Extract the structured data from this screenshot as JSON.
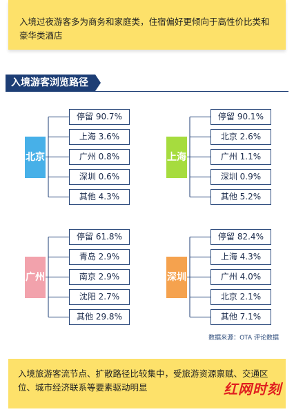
{
  "header": {
    "note": "入境过夜游客多为商务和家庭类，住宿偏好更倾向于高性价比类和豪华类酒店"
  },
  "section": {
    "title": "入境游客浏览路径"
  },
  "colors": {
    "beijing": "#47b0e8",
    "shanghai": "#a6dc3e",
    "guangzhou": "#f2a2ac",
    "shenzhen": "#f5a24e",
    "navy": "#1d3e75",
    "yellow": "#fde16a"
  },
  "groups": [
    {
      "city": "北京",
      "color_key": "beijing",
      "items": [
        "停留 90.7%",
        "上海 3.6%",
        "广州 0.8%",
        "深圳 0.6%",
        "其他 4.3%"
      ]
    },
    {
      "city": "上海",
      "color_key": "shanghai",
      "items": [
        "停留 90.1%",
        "北京 2.6%",
        "广州 1.1%",
        "深圳 0.9%",
        "其他 5.2%"
      ]
    },
    {
      "city": "广州",
      "color_key": "guangzhou",
      "items": [
        "停留 61.8%",
        "青岛 2.9%",
        "南京 2.9%",
        "沈阳 2.7%",
        "其他 29.8%"
      ]
    },
    {
      "city": "深圳",
      "color_key": "shenzhen",
      "items": [
        "停留 82.4%",
        "上海 4.3%",
        "广州 4.0%",
        "北京 2.1%",
        "其他 7.1%"
      ]
    }
  ],
  "source": "数据来源：OTA 评论数据",
  "footer": {
    "note": "入境旅游客流节点、扩散路径比较集中，受旅游资源禀赋、交通区位、城市经济联系等要素驱动明显",
    "watermark": "红网时刻"
  }
}
